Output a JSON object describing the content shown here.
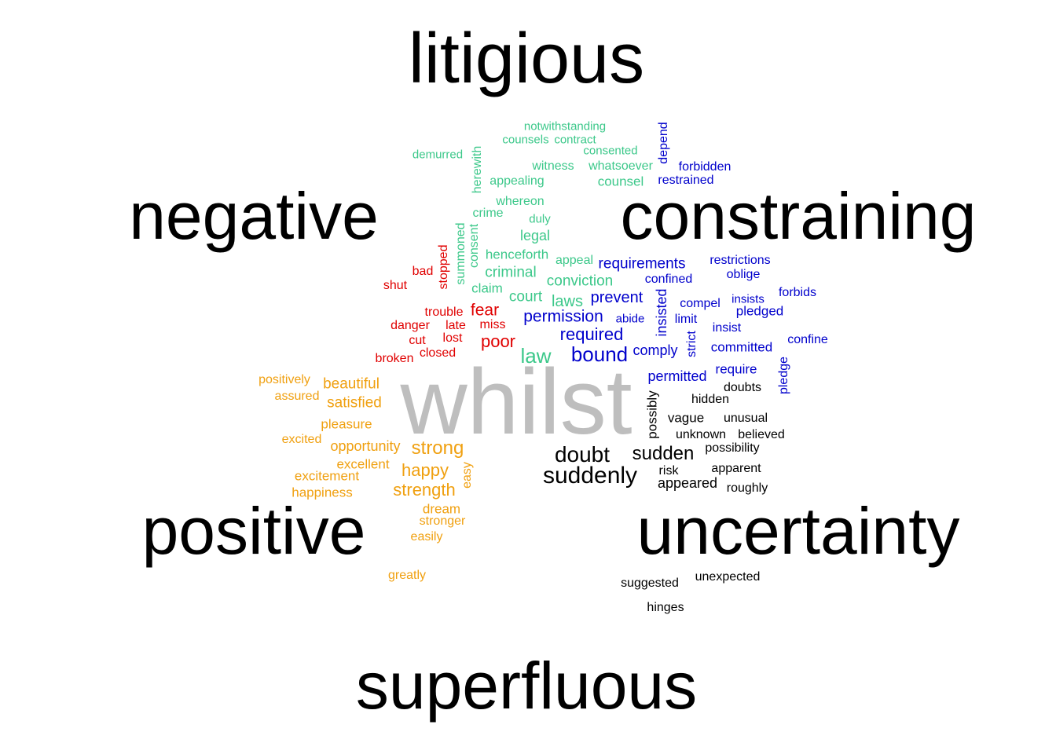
{
  "colors": {
    "heading": "#000000",
    "center": "#bebebe",
    "litigious": "#3cc88a",
    "constraining": "#0000cc",
    "negative": "#e00000",
    "positive": "#f0a010",
    "uncertainty": "#000000"
  },
  "center_word": "whilst",
  "category_labels": [
    "litigious",
    "negative",
    "constraining",
    "positive",
    "uncertainty",
    "superfluous"
  ],
  "groups": {
    "litigious": [
      "notwithstanding",
      "counsels",
      "contract",
      "consented",
      "demurred",
      "herewith",
      "witness",
      "whatsoever",
      "appealing",
      "counsel",
      "whereon",
      "crime",
      "duly",
      "legal",
      "summoned",
      "consent",
      "henceforth",
      "appeal",
      "criminal",
      "claim",
      "conviction",
      "court",
      "laws",
      "law"
    ],
    "constraining": [
      "depend",
      "forbidden",
      "restrained",
      "requirements",
      "restrictions",
      "confined",
      "oblige",
      "prevent",
      "compel",
      "insists",
      "forbids",
      "permission",
      "abide",
      "insisted",
      "pledged",
      "limit",
      "required",
      "insist",
      "strict",
      "confine",
      "committed",
      "bound",
      "comply",
      "require",
      "permitted",
      "pledge"
    ],
    "negative": [
      "bad",
      "stopped",
      "shut",
      "trouble",
      "fear",
      "danger",
      "late",
      "miss",
      "cut",
      "lost",
      "poor",
      "closed",
      "broken"
    ],
    "positive": [
      "positively",
      "beautiful",
      "assured",
      "satisfied",
      "pleasure",
      "excited",
      "opportunity",
      "strong",
      "excellent",
      "happy",
      "excitement",
      "easy",
      "happiness",
      "strength",
      "dream",
      "stronger",
      "easily",
      "greatly"
    ],
    "uncertainty": [
      "doubts",
      "hidden",
      "possibly",
      "vague",
      "unusual",
      "unknown",
      "believed",
      "possibility",
      "doubt",
      "sudden",
      "apparent",
      "suddenly",
      "risk",
      "appeared",
      "roughly",
      "unexpected",
      "suggested",
      "hinges"
    ]
  }
}
